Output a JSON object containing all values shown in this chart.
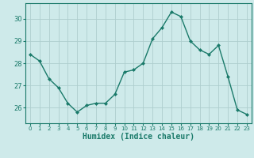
{
  "x": [
    0,
    1,
    2,
    3,
    4,
    5,
    6,
    7,
    8,
    9,
    10,
    11,
    12,
    13,
    14,
    15,
    16,
    17,
    18,
    19,
    20,
    21,
    22,
    23
  ],
  "y": [
    28.4,
    28.1,
    27.3,
    26.9,
    26.2,
    25.8,
    26.1,
    26.2,
    26.2,
    26.6,
    27.6,
    27.7,
    28.0,
    29.1,
    29.6,
    30.3,
    30.1,
    29.0,
    28.6,
    28.4,
    28.8,
    27.4,
    25.9,
    25.7
  ],
  "line_color": "#1a7a6a",
  "marker": "D",
  "markersize": 2.0,
  "bg_color": "#ceeaea",
  "grid_color": "#aecece",
  "tick_color": "#1a7a6a",
  "xlabel": "Humidex (Indice chaleur)",
  "xlabel_fontsize": 7,
  "xtick_fontsize": 5,
  "ytick_fontsize": 6,
  "ylabel_ticks": [
    26,
    27,
    28,
    29,
    30
  ],
  "ylim": [
    25.3,
    30.7
  ],
  "xlim": [
    -0.5,
    23.5
  ],
  "linewidth": 1.0
}
